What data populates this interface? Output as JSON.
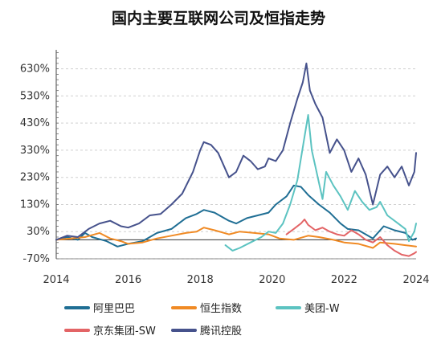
{
  "chart_data": {
    "type": "line",
    "title": "国内主要互联网公司及恒指走势",
    "xlabel": "",
    "ylabel": "",
    "xlim": [
      2014,
      2024
    ],
    "ylim": [
      -70,
      700
    ],
    "x_ticks": [
      "2014",
      "2016",
      "2018",
      "2020",
      "2022",
      "2024"
    ],
    "y_ticks": [
      "630%",
      "530%",
      "430%",
      "330%",
      "230%",
      "130%",
      "30%",
      "-70%"
    ],
    "y_tick_values": [
      630,
      530,
      430,
      330,
      230,
      130,
      30,
      -70
    ],
    "grid": "horizontal-dashed",
    "legend_position": "bottom",
    "series": [
      {
        "name": "阿里巴巴",
        "color": "#1f6e94",
        "points": [
          [
            2014.0,
            0
          ],
          [
            2014.3,
            10
          ],
          [
            2014.6,
            0
          ],
          [
            2014.8,
            25
          ],
          [
            2015.0,
            10
          ],
          [
            2015.4,
            -5
          ],
          [
            2015.7,
            -25
          ],
          [
            2016.0,
            -15
          ],
          [
            2016.4,
            -5
          ],
          [
            2016.8,
            25
          ],
          [
            2017.2,
            40
          ],
          [
            2017.6,
            80
          ],
          [
            2017.9,
            95
          ],
          [
            2018.1,
            110
          ],
          [
            2018.4,
            100
          ],
          [
            2018.8,
            70
          ],
          [
            2019.0,
            60
          ],
          [
            2019.3,
            80
          ],
          [
            2019.6,
            90
          ],
          [
            2019.9,
            100
          ],
          [
            2020.1,
            130
          ],
          [
            2020.4,
            160
          ],
          [
            2020.6,
            200
          ],
          [
            2020.8,
            195
          ],
          [
            2021.0,
            165
          ],
          [
            2021.3,
            130
          ],
          [
            2021.6,
            100
          ],
          [
            2021.9,
            60
          ],
          [
            2022.1,
            40
          ],
          [
            2022.4,
            35
          ],
          [
            2022.8,
            5
          ],
          [
            2023.1,
            50
          ],
          [
            2023.4,
            35
          ],
          [
            2023.7,
            25
          ],
          [
            2023.9,
            0
          ],
          [
            2024.0,
            5
          ]
        ]
      },
      {
        "name": "恒生指数",
        "color": "#f08a24",
        "points": [
          [
            2014.0,
            0
          ],
          [
            2014.4,
            5
          ],
          [
            2014.8,
            10
          ],
          [
            2015.2,
            25
          ],
          [
            2015.5,
            5
          ],
          [
            2015.8,
            -5
          ],
          [
            2016.0,
            -15
          ],
          [
            2016.4,
            -10
          ],
          [
            2016.8,
            5
          ],
          [
            2017.2,
            15
          ],
          [
            2017.6,
            25
          ],
          [
            2017.9,
            30
          ],
          [
            2018.1,
            45
          ],
          [
            2018.4,
            35
          ],
          [
            2018.8,
            20
          ],
          [
            2019.1,
            30
          ],
          [
            2019.5,
            25
          ],
          [
            2019.9,
            20
          ],
          [
            2020.2,
            5
          ],
          [
            2020.6,
            0
          ],
          [
            2021.0,
            15
          ],
          [
            2021.3,
            10
          ],
          [
            2021.7,
            0
          ],
          [
            2022.0,
            -10
          ],
          [
            2022.4,
            -15
          ],
          [
            2022.8,
            -30
          ],
          [
            2023.0,
            -10
          ],
          [
            2023.4,
            -15
          ],
          [
            2023.7,
            -20
          ],
          [
            2024.0,
            -25
          ]
        ]
      },
      {
        "name": "美团-W",
        "color": "#5cc3c1",
        "points": [
          [
            2018.7,
            -20
          ],
          [
            2018.9,
            -40
          ],
          [
            2019.1,
            -30
          ],
          [
            2019.4,
            -10
          ],
          [
            2019.7,
            10
          ],
          [
            2019.9,
            30
          ],
          [
            2020.1,
            25
          ],
          [
            2020.3,
            60
          ],
          [
            2020.5,
            130
          ],
          [
            2020.7,
            220
          ],
          [
            2020.9,
            380
          ],
          [
            2021.0,
            460
          ],
          [
            2021.1,
            330
          ],
          [
            2021.2,
            270
          ],
          [
            2021.4,
            150
          ],
          [
            2021.5,
            250
          ],
          [
            2021.7,
            200
          ],
          [
            2021.9,
            160
          ],
          [
            2022.1,
            110
          ],
          [
            2022.3,
            180
          ],
          [
            2022.5,
            140
          ],
          [
            2022.7,
            110
          ],
          [
            2022.9,
            120
          ],
          [
            2023.0,
            140
          ],
          [
            2023.2,
            90
          ],
          [
            2023.5,
            60
          ],
          [
            2023.7,
            40
          ],
          [
            2023.8,
            -5
          ],
          [
            2023.95,
            30
          ],
          [
            2024.0,
            60
          ]
        ]
      },
      {
        "name": "京东集团-SW",
        "color": "#e36466",
        "points": [
          [
            2020.4,
            20
          ],
          [
            2020.6,
            40
          ],
          [
            2020.8,
            60
          ],
          [
            2020.9,
            75
          ],
          [
            2021.0,
            55
          ],
          [
            2021.2,
            35
          ],
          [
            2021.4,
            45
          ],
          [
            2021.6,
            30
          ],
          [
            2021.8,
            20
          ],
          [
            2022.0,
            15
          ],
          [
            2022.2,
            35
          ],
          [
            2022.4,
            20
          ],
          [
            2022.6,
            0
          ],
          [
            2022.8,
            -10
          ],
          [
            2023.0,
            10
          ],
          [
            2023.2,
            -20
          ],
          [
            2023.4,
            -40
          ],
          [
            2023.6,
            -55
          ],
          [
            2023.8,
            -60
          ],
          [
            2023.95,
            -50
          ],
          [
            2024.0,
            -45
          ]
        ]
      },
      {
        "name": "腾讯控股",
        "color": "#46528c",
        "points": [
          [
            2014.0,
            0
          ],
          [
            2014.3,
            15
          ],
          [
            2014.6,
            10
          ],
          [
            2014.9,
            40
          ],
          [
            2015.2,
            60
          ],
          [
            2015.5,
            70
          ],
          [
            2015.8,
            50
          ],
          [
            2016.0,
            45
          ],
          [
            2016.3,
            60
          ],
          [
            2016.6,
            90
          ],
          [
            2016.9,
            95
          ],
          [
            2017.2,
            130
          ],
          [
            2017.5,
            170
          ],
          [
            2017.8,
            250
          ],
          [
            2018.0,
            330
          ],
          [
            2018.1,
            360
          ],
          [
            2018.3,
            350
          ],
          [
            2018.5,
            320
          ],
          [
            2018.8,
            230
          ],
          [
            2019.0,
            250
          ],
          [
            2019.2,
            310
          ],
          [
            2019.4,
            290
          ],
          [
            2019.6,
            260
          ],
          [
            2019.8,
            270
          ],
          [
            2019.9,
            300
          ],
          [
            2020.1,
            290
          ],
          [
            2020.3,
            330
          ],
          [
            2020.5,
            430
          ],
          [
            2020.7,
            520
          ],
          [
            2020.85,
            580
          ],
          [
            2020.95,
            650
          ],
          [
            2021.05,
            550
          ],
          [
            2021.2,
            500
          ],
          [
            2021.4,
            450
          ],
          [
            2021.6,
            320
          ],
          [
            2021.8,
            370
          ],
          [
            2022.0,
            330
          ],
          [
            2022.2,
            250
          ],
          [
            2022.4,
            300
          ],
          [
            2022.6,
            240
          ],
          [
            2022.8,
            130
          ],
          [
            2023.0,
            240
          ],
          [
            2023.2,
            270
          ],
          [
            2023.4,
            230
          ],
          [
            2023.6,
            270
          ],
          [
            2023.8,
            200
          ],
          [
            2023.95,
            250
          ],
          [
            2024.0,
            320
          ]
        ]
      }
    ]
  }
}
